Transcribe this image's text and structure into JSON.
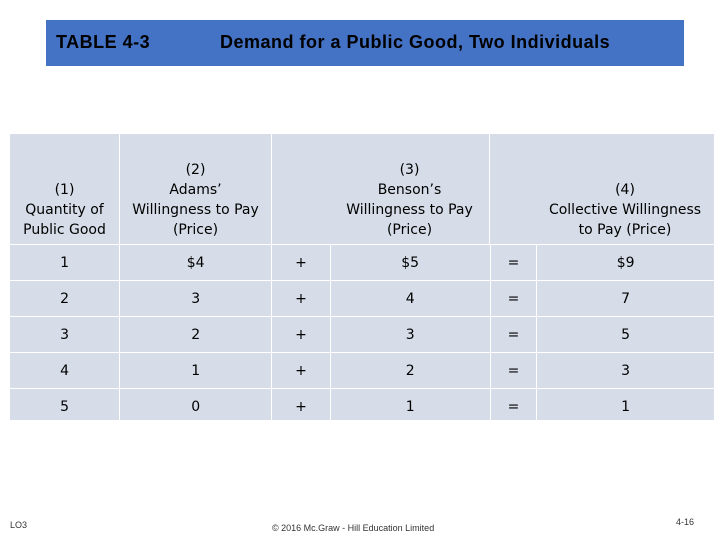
{
  "banner": {
    "table_number": "TABLE 4-3",
    "title": "Demand for a Public Good, Two Individuals"
  },
  "headers": {
    "col1": [
      "(1)",
      "Quantity of",
      "Public Good"
    ],
    "col2": [
      "(2)",
      "Adams’",
      "Willingness to Pay",
      "(Price)"
    ],
    "col4": [
      "(3)",
      "Benson’s",
      "Willingness to Pay",
      "(Price)"
    ],
    "col6": [
      "(4)",
      "Collective Willingness",
      "to Pay (Price)"
    ]
  },
  "rows": [
    {
      "qty": "1",
      "adams": "$4",
      "op1": "+",
      "benson": "$5",
      "op2": "=",
      "collective": "$9"
    },
    {
      "qty": "2",
      "adams": "3",
      "op1": "+",
      "benson": "4",
      "op2": "=",
      "collective": "7"
    },
    {
      "qty": "3",
      "adams": "2",
      "op1": "+",
      "benson": "3",
      "op2": "=",
      "collective": "5"
    },
    {
      "qty": "4",
      "adams": "1",
      "op1": "+",
      "benson": "2",
      "op2": "=",
      "collective": "3"
    },
    {
      "qty": "5",
      "adams": "0",
      "op1": "+",
      "benson": "1",
      "op2": "=",
      "collective": "1"
    }
  ],
  "footer": {
    "lo": "LO3",
    "copyright": "© 2016 Mc.Graw - Hill Education Limited",
    "page": "4-16"
  }
}
